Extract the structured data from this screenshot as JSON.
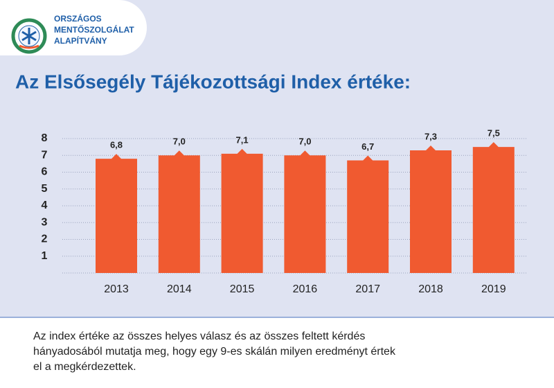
{
  "header": {
    "logo_lines": [
      "ORSZÁGOS",
      "MENTŐSZOLGÁLAT",
      "ALAPÍTVÁNY"
    ]
  },
  "chart_data": {
    "type": "bar",
    "title": "Az Elsősegély Tájékozottsági Index értéke:",
    "categories": [
      "2013",
      "2014",
      "2015",
      "2016",
      "2017",
      "2018",
      "2019"
    ],
    "values": [
      6.8,
      7.0,
      7.1,
      7.0,
      6.7,
      7.3,
      7.5
    ],
    "value_labels": [
      "6,8",
      "7,0",
      "7,1",
      "7,0",
      "6,7",
      "7,3",
      "7,5"
    ],
    "color": "#f05a30",
    "ylim": [
      0,
      8
    ],
    "yticks": [
      1,
      2,
      3,
      4,
      5,
      6,
      7,
      8
    ],
    "grid": true
  },
  "footer": {
    "lines": [
      "Az index értéke az összes helyes válasz és az összes feltett kérdés",
      "hányadosából mutatja meg, hogy egy 9-es skálán milyen eredményt értek",
      "el a megkérdezettek."
    ]
  }
}
